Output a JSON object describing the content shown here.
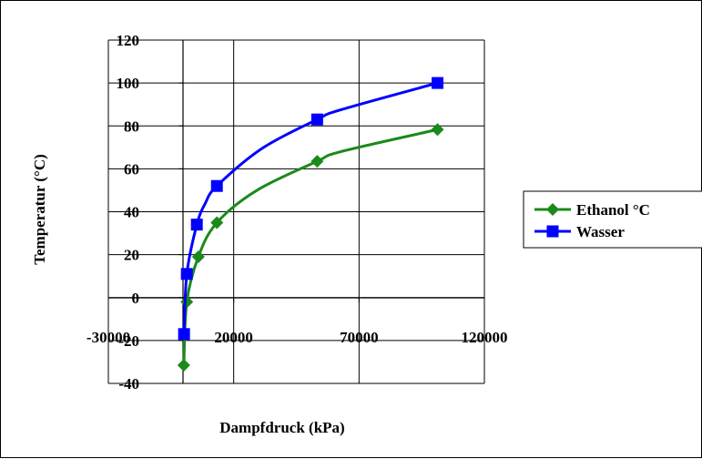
{
  "chart_data": {
    "type": "line",
    "title": "",
    "xlabel": "Dampfdruck (kPa)",
    "ylabel": "Temperatur (°C)",
    "xlim": [
      -30000,
      120000
    ],
    "ylim": [
      -40,
      120
    ],
    "x_ticks": [
      -30000,
      20000,
      70000,
      120000
    ],
    "y_ticks": [
      -40,
      -20,
      0,
      20,
      40,
      60,
      80,
      100,
      120
    ],
    "x_tick_labels": [
      "-30000",
      "20000",
      "70000",
      "120000"
    ],
    "y_tick_labels": [
      "-40",
      "-20",
      "0",
      "20",
      "40",
      "60",
      "80",
      "100",
      "120"
    ],
    "grid": true,
    "smooth": true,
    "legend_position": "right",
    "series": [
      {
        "name": "Ethanol °C",
        "color": "#1a8a1a",
        "marker": "diamond",
        "points": [
          [
            100,
            -31.5
          ],
          [
            1300,
            -2
          ],
          [
            5900,
            19
          ],
          [
            13300,
            34.9
          ],
          [
            29300,
            50
          ],
          [
            53300,
            63.5
          ],
          [
            62700,
            68
          ],
          [
            101300,
            78.3
          ]
        ]
      },
      {
        "name": "Wasser",
        "color": "#0000ff",
        "marker": "square",
        "points": [
          [
            200,
            -17
          ],
          [
            1300,
            11
          ],
          [
            5300,
            34
          ],
          [
            8700,
            44
          ],
          [
            13300,
            52
          ],
          [
            31300,
            69.5
          ],
          [
            53300,
            83
          ],
          [
            62700,
            87.5
          ],
          [
            101300,
            100
          ]
        ]
      }
    ]
  }
}
